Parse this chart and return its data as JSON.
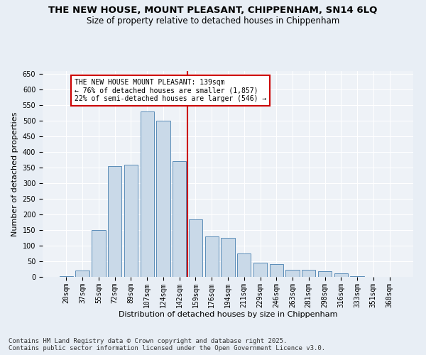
{
  "title": "THE NEW HOUSE, MOUNT PLEASANT, CHIPPENHAM, SN14 6LQ",
  "subtitle": "Size of property relative to detached houses in Chippenham",
  "xlabel": "Distribution of detached houses by size in Chippenham",
  "ylabel": "Number of detached properties",
  "footer": "Contains HM Land Registry data © Crown copyright and database right 2025.\nContains public sector information licensed under the Open Government Licence v3.0.",
  "categories": [
    "20sqm",
    "37sqm",
    "55sqm",
    "72sqm",
    "89sqm",
    "107sqm",
    "124sqm",
    "142sqm",
    "159sqm",
    "176sqm",
    "194sqm",
    "211sqm",
    "229sqm",
    "246sqm",
    "263sqm",
    "281sqm",
    "298sqm",
    "316sqm",
    "333sqm",
    "351sqm",
    "368sqm"
  ],
  "values": [
    3,
    20,
    150,
    355,
    360,
    530,
    500,
    370,
    185,
    130,
    125,
    75,
    45,
    40,
    22,
    22,
    18,
    12,
    3,
    1,
    0
  ],
  "bar_color": "#c9d9e8",
  "bar_edge_color": "#5b8db8",
  "vline_pos": 7.5,
  "vline_color": "#cc0000",
  "annotation_text": "THE NEW HOUSE MOUNT PLEASANT: 139sqm\n← 76% of detached houses are smaller (1,857)\n22% of semi-detached houses are larger (546) →",
  "annotation_box_color": "#ffffff",
  "annotation_box_edge_color": "#cc0000",
  "ylim": [
    0,
    660
  ],
  "yticks": [
    0,
    50,
    100,
    150,
    200,
    250,
    300,
    350,
    400,
    450,
    500,
    550,
    600,
    650
  ],
  "bg_color": "#e8eef5",
  "plot_bg_color": "#eef2f7",
  "title_fontsize": 9.5,
  "subtitle_fontsize": 8.5,
  "xlabel_fontsize": 8,
  "ylabel_fontsize": 8,
  "tick_fontsize": 7,
  "footer_fontsize": 6.5,
  "annotation_fontsize": 7
}
